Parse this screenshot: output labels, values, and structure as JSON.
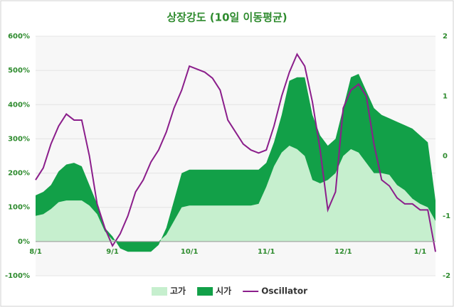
{
  "chart_data": {
    "type": "area-line",
    "title": "상장강도 (10일 이동평균)",
    "categories": [
      "8/1",
      null,
      null,
      null,
      null,
      null,
      null,
      null,
      null,
      null,
      "9/1",
      null,
      null,
      null,
      null,
      null,
      null,
      null,
      null,
      null,
      "10/1",
      null,
      null,
      null,
      null,
      null,
      null,
      null,
      null,
      null,
      "11/1",
      null,
      null,
      null,
      null,
      null,
      null,
      null,
      null,
      null,
      "12/1",
      null,
      null,
      null,
      null,
      null,
      null,
      null,
      null,
      null,
      "1/1",
      null,
      null
    ],
    "series": [
      {
        "name": "고가",
        "color": "#c6efce",
        "stacked": true,
        "values": [
          75,
          80,
          95,
          115,
          120,
          120,
          120,
          105,
          80,
          30,
          5,
          0,
          0,
          0,
          0,
          0,
          0,
          20,
          60,
          100,
          105,
          105,
          105,
          105,
          105,
          105,
          105,
          105,
          105,
          110,
          160,
          220,
          260,
          280,
          270,
          250,
          180,
          170,
          180,
          200,
          250,
          270,
          260,
          230,
          200,
          200,
          195,
          165,
          150,
          125,
          110,
          100,
          60
        ]
      },
      {
        "name": "시가",
        "color": "#12a048",
        "stacked": true,
        "values": [
          60,
          65,
          70,
          90,
          105,
          110,
          100,
          60,
          30,
          10,
          10,
          -20,
          -30,
          -30,
          -30,
          -30,
          -10,
          20,
          60,
          100,
          105,
          105,
          105,
          105,
          105,
          105,
          105,
          105,
          105,
          100,
          70,
          70,
          110,
          190,
          210,
          230,
          190,
          140,
          100,
          100,
          140,
          210,
          230,
          210,
          190,
          170,
          165,
          185,
          190,
          205,
          200,
          190,
          60
        ]
      },
      {
        "name": "Oscillator",
        "color": "#8b1e8b",
        "axis": "y2",
        "values": [
          -0.4,
          -0.2,
          0.2,
          0.5,
          0.7,
          0.6,
          0.6,
          0.0,
          -0.8,
          -1.2,
          -1.5,
          -1.3,
          -1.0,
          -0.6,
          -0.4,
          -0.1,
          0.1,
          0.4,
          0.8,
          1.1,
          1.5,
          1.45,
          1.4,
          1.3,
          1.1,
          0.6,
          0.4,
          0.2,
          0.1,
          0.05,
          0.1,
          0.5,
          1.0,
          1.4,
          1.7,
          1.5,
          0.9,
          0.1,
          -0.9,
          -0.6,
          0.8,
          1.1,
          1.2,
          1.0,
          0.2,
          -0.4,
          -0.5,
          -0.7,
          -0.8,
          -0.8,
          -0.9,
          -0.9,
          -1.6
        ]
      }
    ],
    "ylim": [
      -100,
      600
    ],
    "yticks": [
      {
        "value": -100,
        "label": "-100%"
      },
      {
        "value": 0,
        "label": "0%"
      },
      {
        "value": 100,
        "label": "100%"
      },
      {
        "value": 200,
        "label": "200%"
      },
      {
        "value": 300,
        "label": "300%"
      },
      {
        "value": 400,
        "label": "400%"
      },
      {
        "value": 500,
        "label": "500%"
      },
      {
        "value": 600,
        "label": "600%"
      }
    ],
    "y2lim": [
      -2,
      2
    ],
    "y2ticks": [
      -2,
      -1,
      0,
      1,
      2
    ],
    "grid": true
  }
}
